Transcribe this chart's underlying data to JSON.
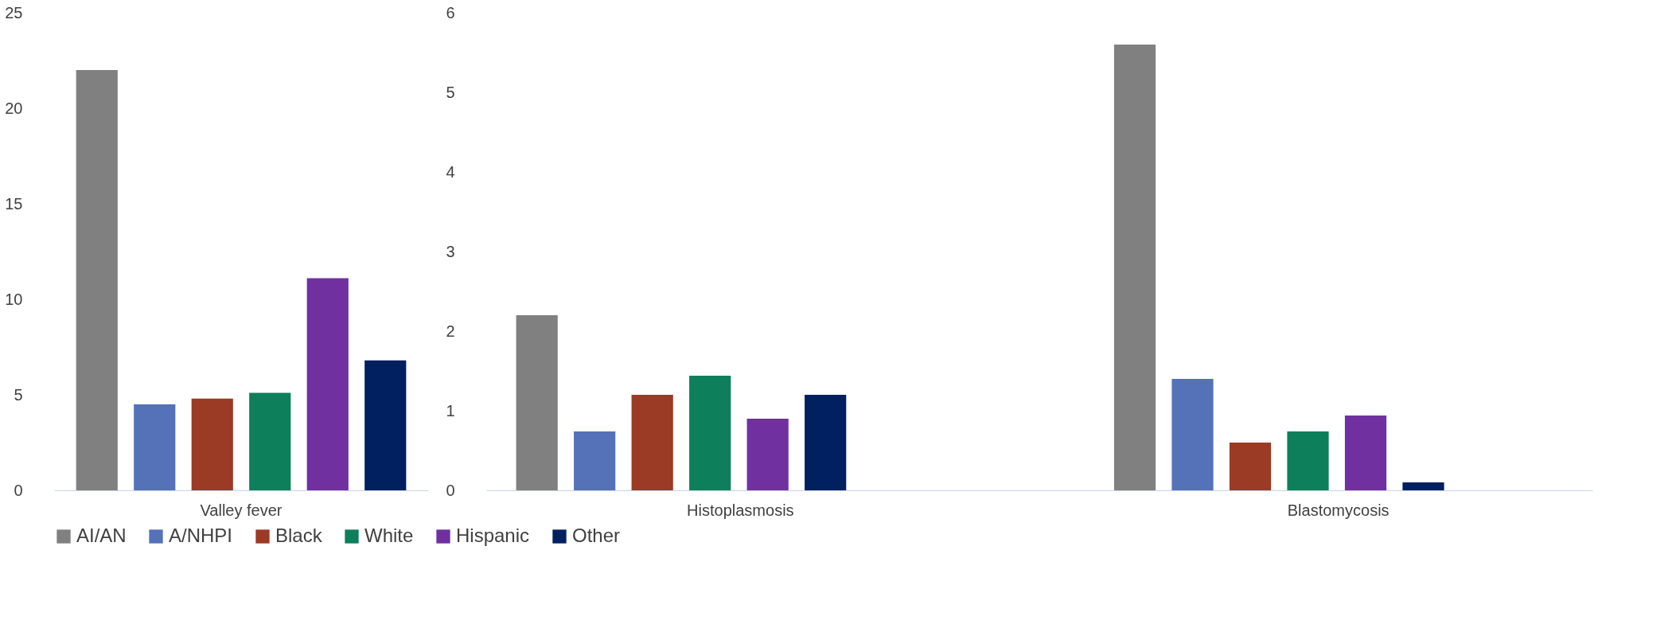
{
  "chart_data": [
    {
      "type": "bar",
      "categories": [
        "Valley fever"
      ],
      "series": [
        {
          "name": "AI/AN",
          "color": "#808080",
          "values": [
            22
          ]
        },
        {
          "name": "A/NHPI",
          "color": "#5571b8",
          "values": [
            4.5
          ]
        },
        {
          "name": "Black",
          "color": "#9b3a25",
          "values": [
            4.8
          ]
        },
        {
          "name": "White",
          "color": "#0d7f5a",
          "values": [
            5.1
          ]
        },
        {
          "name": "Hispanic",
          "color": "#7030a0",
          "values": [
            11.1
          ]
        },
        {
          "name": "Other",
          "color": "#002060",
          "values": [
            6.8
          ]
        }
      ],
      "ylim": [
        0,
        25
      ],
      "yticks": [
        0,
        5,
        10,
        15,
        20,
        25
      ],
      "grid": false,
      "legend": "bottom"
    },
    {
      "type": "bar",
      "categories": [
        "Histoplasmosis",
        "Blastomycosis"
      ],
      "series": [
        {
          "name": "AI/AN",
          "color": "#808080",
          "values": [
            2.2,
            5.6
          ]
        },
        {
          "name": "A/NHPI",
          "color": "#5571b8",
          "values": [
            0.74,
            1.4
          ]
        },
        {
          "name": "Black",
          "color": "#9b3a25",
          "values": [
            1.2,
            0.6
          ]
        },
        {
          "name": "White",
          "color": "#0d7f5a",
          "values": [
            1.44,
            0.74
          ]
        },
        {
          "name": "Hispanic",
          "color": "#7030a0",
          "values": [
            0.9,
            0.94
          ]
        },
        {
          "name": "Other",
          "color": "#002060",
          "values": [
            1.2,
            0.1
          ]
        }
      ],
      "ylim": [
        0,
        6
      ],
      "yticks": [
        0,
        1,
        2,
        3,
        4,
        5,
        6
      ],
      "grid": false,
      "legend": "bottom"
    }
  ]
}
